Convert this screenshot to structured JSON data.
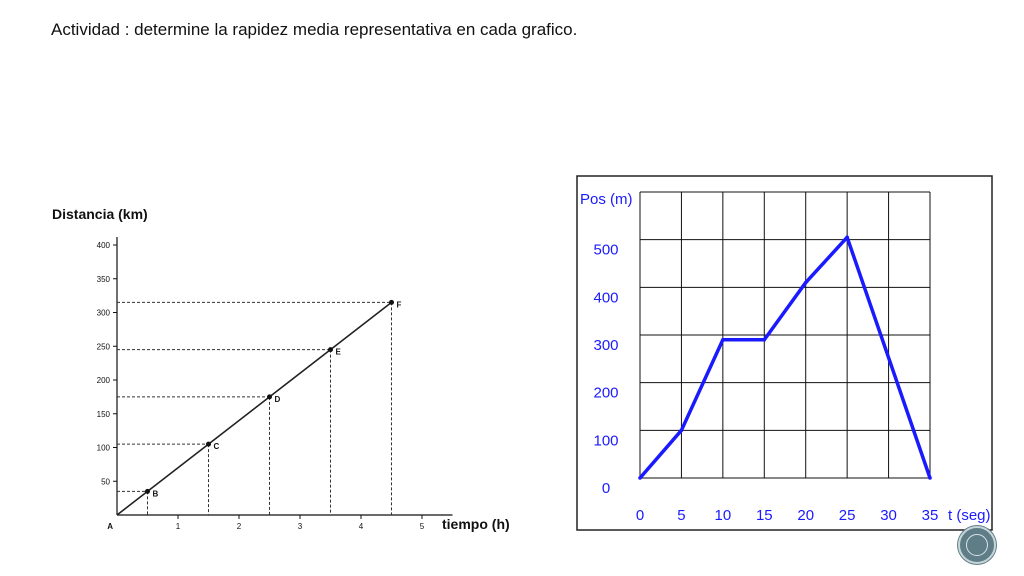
{
  "slide": {
    "title": "Actividad : determine la rapidez media representativa en cada grafico."
  },
  "chart_data": [
    {
      "type": "line",
      "ylabel": "Distancia (km)",
      "xlabel": "tiempo (h)",
      "origin_label": "A",
      "x_ticks": [
        1,
        2,
        3,
        4,
        5
      ],
      "y_ticks": [
        50,
        100,
        150,
        200,
        250,
        300,
        350,
        400
      ],
      "xlim": [
        0,
        5.5
      ],
      "ylim": [
        0,
        400
      ],
      "grid": false,
      "line_color": "#222222",
      "points": [
        {
          "label": "A",
          "x": 0,
          "y": 0
        },
        {
          "label": "B",
          "x": 0.5,
          "y": 35
        },
        {
          "label": "C",
          "x": 1.5,
          "y": 105
        },
        {
          "label": "D",
          "x": 2.5,
          "y": 175
        },
        {
          "label": "E",
          "x": 3.5,
          "y": 245
        },
        {
          "label": "F",
          "x": 4.5,
          "y": 315
        }
      ]
    },
    {
      "type": "line",
      "ylabel": "Pos (m)",
      "xlabel": "t (seg)",
      "x_ticks": [
        0,
        5,
        10,
        15,
        20,
        25,
        30,
        35
      ],
      "y_ticks": [
        0,
        100,
        200,
        300,
        400,
        500
      ],
      "xlim": [
        0,
        35
      ],
      "ylim": [
        0,
        600
      ],
      "grid": true,
      "line_color": "#1a1aff",
      "x": [
        0,
        5,
        10,
        15,
        20,
        25,
        35
      ],
      "y": [
        0,
        100,
        290,
        290,
        410,
        505,
        0
      ]
    }
  ]
}
